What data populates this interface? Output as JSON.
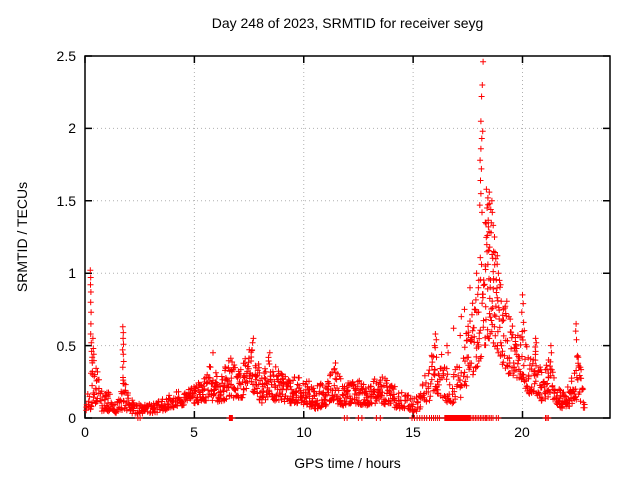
{
  "page": {
    "background": "#ffffff"
  },
  "chart_data": {
    "type": "scatter",
    "title": "Day 248 of 2023, SRMTID for receiver seyg",
    "xlabel": "GPS time / hours",
    "ylabel": "SRMTID / TECUs",
    "xlim": [
      0,
      24
    ],
    "ylim": [
      0,
      2.5
    ],
    "xtick_values": [
      0,
      5,
      10,
      15,
      20
    ],
    "xtick_labels": [
      "0",
      "5",
      "10",
      "15",
      "20"
    ],
    "ytick_values": [
      0,
      0.5,
      1,
      1.5,
      2,
      2.5
    ],
    "ytick_labels": [
      "0",
      "0.5",
      "1",
      "1.5",
      "2",
      "2.5"
    ],
    "grid": true,
    "legend": "none",
    "marker": "plus",
    "marker_color": "#ff0000",
    "grid_color": "#b0b0b0",
    "border_color": "#000000",
    "series_name": "SRMTID",
    "max_point": [
      18.2,
      2.46
    ],
    "band_envelope_format": "[x, y_min, y_max, density]",
    "band_envelope": [
      [
        0.05,
        0.03,
        0.1,
        2
      ],
      [
        0.2,
        0.04,
        0.25,
        2
      ],
      [
        0.35,
        0.1,
        0.5,
        3
      ],
      [
        0.5,
        0.1,
        0.38,
        3
      ],
      [
        0.65,
        0.06,
        0.28,
        2
      ],
      [
        0.8,
        0.04,
        0.16,
        2
      ],
      [
        1.0,
        0.05,
        0.2,
        3
      ],
      [
        1.2,
        0.04,
        0.15,
        2
      ],
      [
        1.5,
        0.03,
        0.12,
        2
      ],
      [
        1.75,
        0.06,
        0.3,
        3
      ],
      [
        1.95,
        0.05,
        0.22,
        2
      ],
      [
        2.2,
        0.03,
        0.12,
        2
      ],
      [
        2.6,
        0.02,
        0.09,
        2
      ],
      [
        3.0,
        0.03,
        0.1,
        2
      ],
      [
        3.4,
        0.04,
        0.13,
        2
      ],
      [
        3.8,
        0.06,
        0.16,
        2
      ],
      [
        4.2,
        0.08,
        0.18,
        2
      ],
      [
        4.6,
        0.09,
        0.2,
        2
      ],
      [
        5.0,
        0.1,
        0.22,
        3
      ],
      [
        5.4,
        0.12,
        0.28,
        3
      ],
      [
        5.8,
        0.12,
        0.42,
        3
      ],
      [
        6.1,
        0.1,
        0.3,
        3
      ],
      [
        6.4,
        0.12,
        0.36,
        3
      ],
      [
        6.7,
        0.14,
        0.42,
        3
      ],
      [
        7.0,
        0.12,
        0.32,
        3
      ],
      [
        7.3,
        0.15,
        0.42,
        3
      ],
      [
        7.6,
        0.2,
        0.5,
        3
      ],
      [
        7.8,
        0.16,
        0.44,
        3
      ],
      [
        8.1,
        0.1,
        0.3,
        3
      ],
      [
        8.4,
        0.14,
        0.42,
        3
      ],
      [
        8.7,
        0.12,
        0.36,
        3
      ],
      [
        9.0,
        0.12,
        0.3,
        3
      ],
      [
        9.4,
        0.1,
        0.28,
        3
      ],
      [
        9.8,
        0.1,
        0.3,
        3
      ],
      [
        10.2,
        0.08,
        0.26,
        3
      ],
      [
        10.6,
        0.06,
        0.22,
        3
      ],
      [
        11.0,
        0.08,
        0.26,
        3
      ],
      [
        11.4,
        0.12,
        0.36,
        3
      ],
      [
        11.7,
        0.08,
        0.28,
        3
      ],
      [
        12.0,
        0.08,
        0.24,
        3
      ],
      [
        12.4,
        0.1,
        0.28,
        3
      ],
      [
        12.8,
        0.08,
        0.22,
        3
      ],
      [
        13.2,
        0.1,
        0.28,
        3
      ],
      [
        13.6,
        0.1,
        0.3,
        3
      ],
      [
        14.0,
        0.08,
        0.24,
        3
      ],
      [
        14.4,
        0.06,
        0.2,
        2
      ],
      [
        14.8,
        0.05,
        0.16,
        2
      ],
      [
        15.1,
        0.04,
        0.14,
        2
      ],
      [
        15.45,
        0.08,
        0.25,
        2
      ],
      [
        15.75,
        0.12,
        0.4,
        2
      ],
      [
        16.0,
        0.18,
        0.5,
        3
      ],
      [
        16.3,
        0.14,
        0.45,
        2
      ],
      [
        16.6,
        0.1,
        0.35,
        2
      ],
      [
        16.9,
        0.1,
        0.32,
        2
      ],
      [
        17.2,
        0.14,
        0.45,
        2
      ],
      [
        17.5,
        0.25,
        0.65,
        3
      ],
      [
        17.8,
        0.3,
        0.85,
        3
      ],
      [
        18.0,
        0.35,
        1.05,
        3
      ],
      [
        18.2,
        0.45,
        1.3,
        3
      ],
      [
        18.45,
        0.55,
        1.5,
        4
      ],
      [
        18.65,
        0.5,
        1.3,
        4
      ],
      [
        18.85,
        0.45,
        1.05,
        3
      ],
      [
        19.1,
        0.35,
        0.9,
        3
      ],
      [
        19.4,
        0.3,
        0.75,
        3
      ],
      [
        19.7,
        0.28,
        0.6,
        3
      ],
      [
        20.0,
        0.25,
        0.7,
        3
      ],
      [
        20.3,
        0.15,
        0.4,
        3
      ],
      [
        20.6,
        0.18,
        0.45,
        3
      ],
      [
        20.9,
        0.1,
        0.3,
        3
      ],
      [
        21.2,
        0.15,
        0.42,
        3
      ],
      [
        21.45,
        0.12,
        0.35,
        2
      ],
      [
        21.7,
        0.07,
        0.2,
        3
      ],
      [
        22.0,
        0.06,
        0.18,
        3
      ],
      [
        22.25,
        0.1,
        0.3,
        3
      ],
      [
        22.5,
        0.12,
        0.45,
        3
      ],
      [
        22.7,
        0.1,
        0.35,
        2
      ],
      [
        22.85,
        0.04,
        0.12,
        2
      ]
    ],
    "points": [
      [
        18.2,
        2.46
      ],
      [
        18.16,
        2.3
      ],
      [
        18.13,
        2.22
      ],
      [
        18.1,
        2.05
      ],
      [
        18.18,
        1.98
      ],
      [
        18.14,
        1.93
      ],
      [
        18.1,
        1.86
      ],
      [
        18.06,
        1.78
      ],
      [
        18.12,
        1.72
      ],
      [
        18.08,
        1.64
      ],
      [
        18.1,
        1.55
      ],
      [
        18.05,
        1.47
      ],
      [
        18.15,
        1.42
      ],
      [
        18.35,
        1.58
      ],
      [
        18.42,
        1.52
      ],
      [
        18.48,
        1.56
      ],
      [
        18.5,
        1.48
      ],
      [
        18.55,
        1.44
      ],
      [
        18.6,
        1.5
      ],
      [
        18.38,
        1.45
      ],
      [
        18.62,
        1.42
      ],
      [
        18.3,
        1.35
      ],
      [
        18.44,
        1.32
      ],
      [
        18.56,
        1.28
      ],
      [
        18.66,
        1.33
      ],
      [
        18.72,
        1.25
      ],
      [
        18.5,
        1.18
      ],
      [
        18.68,
        1.15
      ],
      [
        18.78,
        1.1
      ],
      [
        18.85,
        1.12
      ],
      [
        17.9,
        1.0
      ],
      [
        18.0,
        0.95
      ],
      [
        18.3,
        1.05
      ],
      [
        18.9,
        1.0
      ],
      [
        18.95,
        0.95
      ],
      [
        19.0,
        0.92
      ],
      [
        17.2,
        0.7
      ],
      [
        17.15,
        0.57
      ],
      [
        16.85,
        0.62
      ],
      [
        17.35,
        0.75
      ],
      [
        17.6,
        0.9
      ],
      [
        16.55,
        0.5
      ],
      [
        16.6,
        0.45
      ],
      [
        0.24,
        1.02
      ],
      [
        0.26,
        0.97
      ],
      [
        0.25,
        0.92
      ],
      [
        0.27,
        0.87
      ],
      [
        0.26,
        0.8
      ],
      [
        0.28,
        0.73
      ],
      [
        0.27,
        0.65
      ],
      [
        0.26,
        0.58
      ],
      [
        0.29,
        0.52
      ],
      [
        0.3,
        0.46
      ],
      [
        0.33,
        0.42
      ],
      [
        0.36,
        0.55
      ],
      [
        0.38,
        0.48
      ],
      [
        0.4,
        0.44
      ],
      [
        1.73,
        0.63
      ],
      [
        1.75,
        0.59
      ],
      [
        1.74,
        0.55
      ],
      [
        1.76,
        0.51
      ],
      [
        1.72,
        0.47
      ],
      [
        1.75,
        0.44
      ],
      [
        1.77,
        0.39
      ],
      [
        1.73,
        0.35
      ],
      [
        7.7,
        0.55
      ],
      [
        7.66,
        0.52
      ],
      [
        5.85,
        0.45
      ],
      [
        8.45,
        0.45
      ],
      [
        11.45,
        0.38
      ],
      [
        16.02,
        0.58
      ],
      [
        16.06,
        0.54
      ],
      [
        15.98,
        0.5
      ],
      [
        20.0,
        0.85
      ],
      [
        20.03,
        0.79
      ],
      [
        19.97,
        0.73
      ],
      [
        20.05,
        0.66
      ],
      [
        20.6,
        0.55
      ],
      [
        20.63,
        0.52
      ],
      [
        20.58,
        0.49
      ],
      [
        20.6,
        0.46
      ],
      [
        21.3,
        0.5
      ],
      [
        21.32,
        0.45
      ],
      [
        22.45,
        0.65
      ],
      [
        22.43,
        0.6
      ],
      [
        22.47,
        0.54
      ],
      [
        22.55,
        0.42
      ],
      [
        22.6,
        0.35
      ]
    ],
    "zero_marks_format": "[x_start, x_end, count] markers at y=0",
    "zero_marks_runs": [
      [
        2.42,
        2.52,
        2
      ],
      [
        6.6,
        6.74,
        4
      ],
      [
        11.86,
        11.98,
        2
      ],
      [
        12.5,
        12.66,
        2
      ],
      [
        13.32,
        13.5,
        2
      ],
      [
        14.95,
        15.18,
        3
      ],
      [
        15.3,
        15.62,
        4
      ],
      [
        15.75,
        16.2,
        6
      ],
      [
        16.45,
        17.58,
        36
      ],
      [
        17.62,
        18.3,
        10
      ],
      [
        18.35,
        18.65,
        5
      ],
      [
        18.8,
        18.9,
        2
      ],
      [
        21.05,
        21.18,
        3
      ]
    ]
  }
}
